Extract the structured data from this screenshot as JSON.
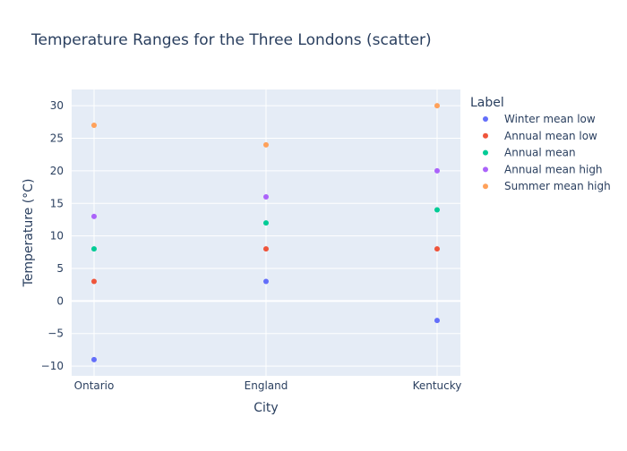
{
  "chart_data": {
    "type": "scatter",
    "title": "Temperature Ranges for the Three Londons (scatter)",
    "xlabel": "City",
    "ylabel": "Temperature (°C)",
    "categories": [
      "Ontario",
      "England",
      "Kentucky"
    ],
    "ylim": [
      -11.5,
      32.5
    ],
    "yticks": [
      -10,
      -5,
      0,
      5,
      10,
      15,
      20,
      25,
      30
    ],
    "ytick_labels": [
      "−10",
      "−5",
      "0",
      "5",
      "10",
      "15",
      "20",
      "25",
      "30"
    ],
    "grid": true,
    "legend_title": "Label",
    "legend_position": "right",
    "series": [
      {
        "name": "Winter mean low",
        "color": "#636efa",
        "values": [
          -9,
          3,
          -3
        ]
      },
      {
        "name": "Annual mean low",
        "color": "#ef553b",
        "values": [
          3,
          8,
          8
        ]
      },
      {
        "name": "Annual mean",
        "color": "#00cc96",
        "values": [
          8,
          12,
          14
        ]
      },
      {
        "name": "Annual mean high",
        "color": "#ab63fa",
        "values": [
          13,
          16,
          20
        ]
      },
      {
        "name": "Summer mean high",
        "color": "#ffa15a",
        "values": [
          27,
          24,
          30
        ]
      }
    ]
  }
}
